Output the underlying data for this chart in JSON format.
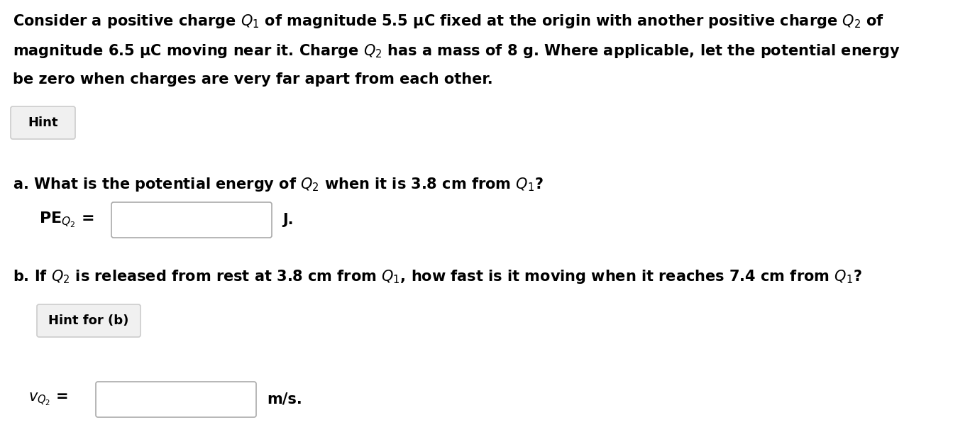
{
  "background_color": "#ffffff",
  "intro_text_line1": "Consider a positive charge $Q_1$ of magnitude 5.5 μC fixed at the origin with another positive charge $Q_2$ of",
  "intro_text_line2": "magnitude 6.5 μC moving near it. Charge $Q_2$ has a mass of 8 g. Where applicable, let the potential energy",
  "intro_text_line3": "be zero when charges are very far apart from each other.",
  "hint_button_text": "Hint",
  "part_a_text": "a. What is the potential energy of $Q_2$ when it is 3.8 cm from $Q_1$?",
  "pe_label": "PE$_{Q_2}$",
  "pe_unit": "J.",
  "part_b_text": "b. If $Q_2$ is released from rest at 3.8 cm from $Q_1$, how fast is it moving when it reaches 7.4 cm from $Q_1$?",
  "hint_b_button_text": "Hint for (b)",
  "v_label": "$v_{Q_2}$",
  "v_unit": "m/s.",
  "text_color": "#000000",
  "box_edge_color": "#aaaaaa",
  "button_bg_color": "#f0f0f0",
  "button_edge_color": "#cccccc",
  "font_size_body": 15,
  "font_size_hint": 13,
  "font_weight": "bold"
}
